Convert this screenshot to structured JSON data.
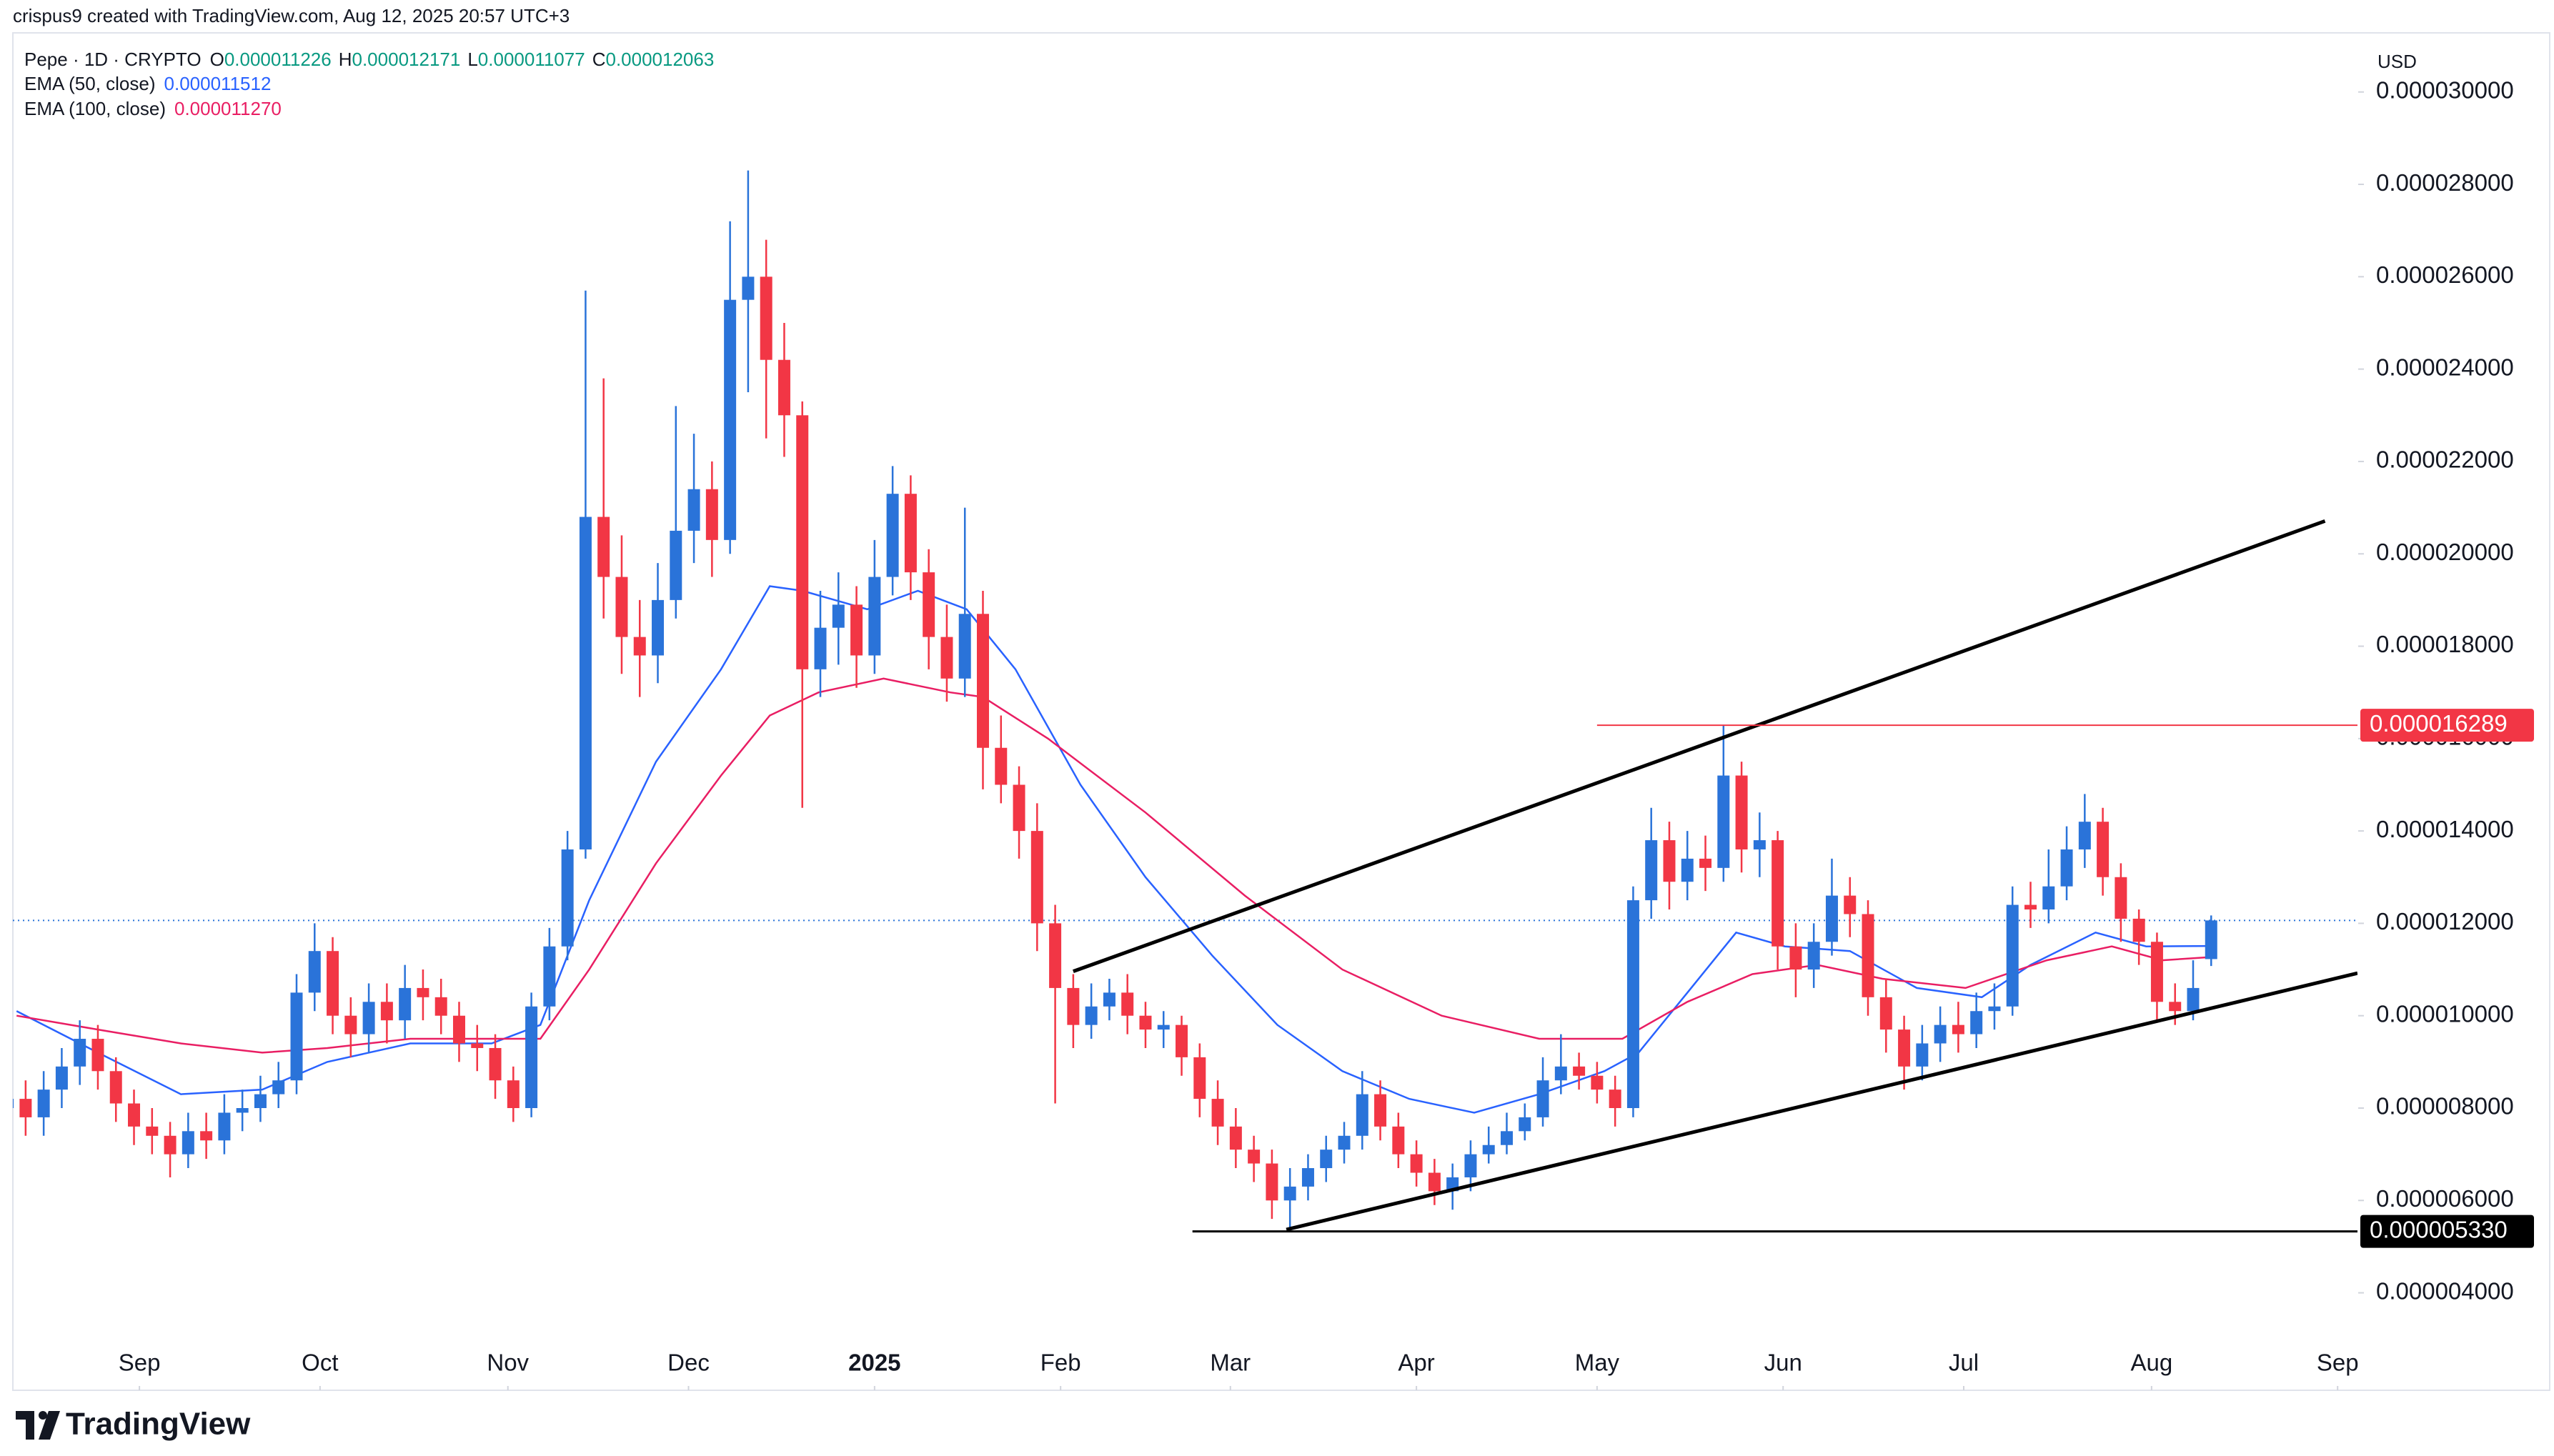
{
  "header": {
    "attribution": "crispus9 created with TradingView.com, Aug 12, 2025 20:57 UTC+3",
    "symbol": "Pepe · 1D · CRYPTO",
    "ohlc": [
      {
        "key": "O",
        "value": 1.1226e-05
      },
      {
        "key": "H",
        "value": 1.2171e-05
      },
      {
        "key": "L",
        "value": 1.1077e-05
      },
      {
        "key": "C",
        "value": 1.2063e-05
      }
    ]
  },
  "footer": {
    "brand": "TradingView"
  },
  "chart_data": {
    "type": "candlestick",
    "currency": "USD",
    "up_color": "#2a73d9",
    "down_color": "#f23645",
    "open": [
      8e-06,
      8.2e-06,
      7.8e-06,
      8.4e-06,
      8.9e-06,
      9.5e-06,
      8.8e-06,
      8.1e-06,
      7.6e-06,
      7.4e-06,
      7e-06,
      7.5e-06,
      7.3e-06,
      7.9e-06,
      8e-06,
      8.3e-06,
      8.6e-06,
      1.05e-05,
      1.14e-05,
      1e-05,
      9.6e-06,
      1.03e-05,
      9.9e-06,
      1.06e-05,
      1.04e-05,
      1e-05,
      9.4e-06,
      9.3e-06,
      8.6e-06,
      8e-06,
      1.02e-05,
      1.15e-05,
      1.36e-05,
      2.08e-05,
      1.95e-05,
      1.82e-05,
      1.78e-05,
      1.9e-05,
      2.05e-05,
      2.14e-05,
      2.03e-05,
      2.55e-05,
      2.6e-05,
      2.42e-05,
      2.3e-05,
      1.75e-05,
      1.84e-05,
      1.89e-05,
      1.78e-05,
      1.95e-05,
      2.13e-05,
      1.96e-05,
      1.82e-05,
      1.73e-05,
      1.87e-05,
      1.58e-05,
      1.5e-05,
      1.4e-05,
      1.2e-05,
      1.06e-05,
      9.8e-06,
      1.02e-05,
      1.05e-05,
      1e-05,
      9.7e-06,
      9.8e-06,
      9.1e-06,
      8.2e-06,
      7.6e-06,
      7.1e-06,
      6.8e-06,
      6e-06,
      6.3e-06,
      6.7e-06,
      7.1e-06,
      7.4e-06,
      8.3e-06,
      7.6e-06,
      7e-06,
      6.6e-06,
      6.2e-06,
      6.5e-06,
      7e-06,
      7.2e-06,
      7.5e-06,
      7.8e-06,
      8.6e-06,
      8.9e-06,
      8.7e-06,
      8.4e-06,
      8e-06,
      1.25e-05,
      1.38e-05,
      1.29e-05,
      1.34e-05,
      1.32e-05,
      1.52e-05,
      1.36e-05,
      1.38e-05,
      1.15e-05,
      1.1e-05,
      1.16e-05,
      1.26e-05,
      1.22e-05,
      1.04e-05,
      9.7e-06,
      8.9e-06,
      9.4e-06,
      9.8e-06,
      9.6e-06,
      1.01e-05,
      1.02e-05,
      1.24e-05,
      1.23e-05,
      1.28e-05,
      1.36e-05,
      1.42e-05,
      1.3e-05,
      1.21e-05,
      1.16e-05,
      1.03e-05,
      1.01e-05,
      1.1226e-05
    ],
    "high": [
      8.6e-06,
      8.6e-06,
      8.8e-06,
      9.3e-06,
      9.9e-06,
      9.8e-06,
      9.1e-06,
      8.4e-06,
      8e-06,
      7.7e-06,
      7.9e-06,
      7.9e-06,
      8.3e-06,
      8.4e-06,
      8.7e-06,
      9e-06,
      1.09e-05,
      1.2e-05,
      1.17e-05,
      1.04e-05,
      1.07e-05,
      1.07e-05,
      1.11e-05,
      1.1e-05,
      1.08e-05,
      1.03e-05,
      9.8e-06,
      9.6e-06,
      8.9e-06,
      1.05e-05,
      1.19e-05,
      1.4e-05,
      2.57e-05,
      2.38e-05,
      2.04e-05,
      1.9e-05,
      1.98e-05,
      2.32e-05,
      2.26e-05,
      2.2e-05,
      2.72e-05,
      2.83e-05,
      2.68e-05,
      2.5e-05,
      2.33e-05,
      1.92e-05,
      1.96e-05,
      1.93e-05,
      2.03e-05,
      2.19e-05,
      2.17e-05,
      2.01e-05,
      1.89e-05,
      2.1e-05,
      1.92e-05,
      1.65e-05,
      1.54e-05,
      1.46e-05,
      1.24e-05,
      1.09e-05,
      1.07e-05,
      1.08e-05,
      1.09e-05,
      1.03e-05,
      1.01e-05,
      1e-05,
      9.4e-06,
      8.6e-06,
      8e-06,
      7.4e-06,
      7.1e-06,
      6.7e-06,
      7e-06,
      7.4e-06,
      7.7e-06,
      8.8e-06,
      8.6e-06,
      7.9e-06,
      7.3e-06,
      6.9e-06,
      6.8e-06,
      7.3e-06,
      7.6e-06,
      7.9e-06,
      8.1e-06,
      9.1e-06,
      9.6e-06,
      9.2e-06,
      9e-06,
      8.7e-06,
      1.28e-05,
      1.45e-05,
      1.42e-05,
      1.4e-05,
      1.39e-05,
      1.63e-05,
      1.55e-05,
      1.44e-05,
      1.4e-05,
      1.2e-05,
      1.2e-05,
      1.34e-05,
      1.3e-05,
      1.25e-05,
      1.08e-05,
      1e-05,
      9.8e-06,
      1.02e-05,
      1.03e-05,
      1.05e-05,
      1.07e-05,
      1.28e-05,
      1.29e-05,
      1.36e-05,
      1.41e-05,
      1.48e-05,
      1.45e-05,
      1.33e-05,
      1.23e-05,
      1.18e-05,
      1.07e-05,
      1.12e-05,
      1.2171e-05
    ],
    "low": [
      7.6e-06,
      7.4e-06,
      7.4e-06,
      8e-06,
      8.5e-06,
      8.4e-06,
      7.7e-06,
      7.2e-06,
      7e-06,
      6.5e-06,
      6.7e-06,
      6.9e-06,
      7e-06,
      7.5e-06,
      7.7e-06,
      8e-06,
      8.3e-06,
      1.01e-05,
      9.6e-06,
      9.1e-06,
      9.2e-06,
      9.4e-06,
      9.5e-06,
      9.9e-06,
      9.6e-06,
      9e-06,
      8.8e-06,
      8.2e-06,
      7.7e-06,
      7.8e-06,
      9.9e-06,
      1.12e-05,
      1.34e-05,
      1.86e-05,
      1.74e-05,
      1.69e-05,
      1.72e-05,
      1.86e-05,
      1.98e-05,
      1.95e-05,
      2e-05,
      2.35e-05,
      2.25e-05,
      2.21e-05,
      1.45e-05,
      1.69e-05,
      1.76e-05,
      1.71e-05,
      1.74e-05,
      1.91e-05,
      1.9e-05,
      1.75e-05,
      1.68e-05,
      1.69e-05,
      1.49e-05,
      1.46e-05,
      1.34e-05,
      1.14e-05,
      8.1e-06,
      9.3e-06,
      9.5e-06,
      9.9e-06,
      9.6e-06,
      9.3e-06,
      9.3e-06,
      8.7e-06,
      7.8e-06,
      7.2e-06,
      6.7e-06,
      6.4e-06,
      5.6e-06,
      5.33e-06,
      6e-06,
      6.4e-06,
      6.8e-06,
      7.1e-06,
      7.3e-06,
      6.7e-06,
      6.3e-06,
      5.9e-06,
      5.8e-06,
      6.2e-06,
      6.8e-06,
      7e-06,
      7.3e-06,
      7.6e-06,
      8.3e-06,
      8.4e-06,
      8.1e-06,
      7.6e-06,
      7.8e-06,
      1.21e-05,
      1.23e-05,
      1.25e-05,
      1.27e-05,
      1.29e-05,
      1.31e-05,
      1.3e-05,
      1.1e-05,
      1.04e-05,
      1.06e-05,
      1.13e-05,
      1.17e-05,
      1e-05,
      9.2e-06,
      8.4e-06,
      8.6e-06,
      9e-06,
      9.2e-06,
      9.3e-06,
      9.7e-06,
      1e-05,
      1.19e-05,
      1.2e-05,
      1.25e-05,
      1.32e-05,
      1.26e-05,
      1.16e-05,
      1.11e-05,
      9.9e-06,
      9.8e-06,
      9.9e-06,
      1.1077e-05
    ],
    "close": [
      8.2e-06,
      7.8e-06,
      8.4e-06,
      8.9e-06,
      9.5e-06,
      8.8e-06,
      8.1e-06,
      7.6e-06,
      7.4e-06,
      7e-06,
      7.5e-06,
      7.3e-06,
      7.9e-06,
      8e-06,
      8.3e-06,
      8.6e-06,
      1.05e-05,
      1.14e-05,
      1e-05,
      9.6e-06,
      1.03e-05,
      9.9e-06,
      1.06e-05,
      1.04e-05,
      1e-05,
      9.4e-06,
      9.3e-06,
      8.6e-06,
      8e-06,
      1.02e-05,
      1.15e-05,
      1.36e-05,
      2.08e-05,
      1.95e-05,
      1.82e-05,
      1.78e-05,
      1.9e-05,
      2.05e-05,
      2.14e-05,
      2.03e-05,
      2.55e-05,
      2.6e-05,
      2.42e-05,
      2.3e-05,
      1.75e-05,
      1.84e-05,
      1.89e-05,
      1.78e-05,
      1.95e-05,
      2.13e-05,
      1.96e-05,
      1.82e-05,
      1.73e-05,
      1.87e-05,
      1.58e-05,
      1.5e-05,
      1.4e-05,
      1.2e-05,
      1.06e-05,
      9.8e-06,
      1.02e-05,
      1.05e-05,
      1e-05,
      9.7e-06,
      9.8e-06,
      9.1e-06,
      8.2e-06,
      7.6e-06,
      7.1e-06,
      6.8e-06,
      6e-06,
      6.3e-06,
      6.7e-06,
      7.1e-06,
      7.4e-06,
      8.3e-06,
      7.6e-06,
      7e-06,
      6.6e-06,
      6.2e-06,
      6.5e-06,
      7e-06,
      7.2e-06,
      7.5e-06,
      7.8e-06,
      8.6e-06,
      8.9e-06,
      8.7e-06,
      8.4e-06,
      8e-06,
      1.25e-05,
      1.38e-05,
      1.29e-05,
      1.34e-05,
      1.32e-05,
      1.52e-05,
      1.36e-05,
      1.38e-05,
      1.15e-05,
      1.1e-05,
      1.16e-05,
      1.26e-05,
      1.22e-05,
      1.04e-05,
      9.7e-06,
      8.9e-06,
      9.4e-06,
      9.8e-06,
      9.6e-06,
      1.01e-05,
      1.02e-05,
      1.24e-05,
      1.23e-05,
      1.28e-05,
      1.36e-05,
      1.42e-05,
      1.3e-05,
      1.21e-05,
      1.16e-05,
      1.03e-05,
      1.01e-05,
      1.06e-05,
      1.2063e-05
    ],
    "ema": [
      {
        "name": "EMA (50, close)",
        "color": "#2962ff",
        "legend_value": 1.1512e-05,
        "x": [
          0.5,
          5.0,
          9.6,
          14.1,
          17.7,
          22.3,
          26.8,
          29.5,
          32.2,
          35.9,
          39.5,
          42.2,
          44.0,
          47.6,
          50.4,
          53.1,
          55.8,
          59.4,
          63.0,
          66.7,
          70.3,
          73.9,
          77.6,
          81.2,
          84.8,
          88.4,
          90.3,
          93.0,
          95.7,
          98.4,
          102.0,
          105.7,
          109.3,
          112.0,
          115.6,
          118.4,
          122.0
        ],
        "values": [
          1.01e-05,
          9.2e-06,
          8.3e-06,
          8.4e-06,
          9e-06,
          9.4e-06,
          9.4e-06,
          9.8e-06,
          1.25e-05,
          1.55e-05,
          1.75e-05,
          1.93e-05,
          1.92e-05,
          1.88e-05,
          1.92e-05,
          1.88e-05,
          1.75e-05,
          1.5e-05,
          1.3e-05,
          1.13e-05,
          9.8e-06,
          8.8e-06,
          8.2e-06,
          7.9e-06,
          8.3e-06,
          8.8e-06,
          9.2e-06,
          1.05e-05,
          1.18e-05,
          1.15e-05,
          1.14e-05,
          1.06e-05,
          1.04e-05,
          1.11e-05,
          1.18e-05,
          1.15e-05,
          1.151e-05
        ]
      },
      {
        "name": "EMA (100, close)",
        "color": "#e91e63",
        "legend_value": {
          "value": 1.127e-05,
          "label": "0.000011270"
        },
        "x": [
          0.5,
          5.0,
          9.6,
          14.1,
          17.7,
          22.3,
          26.8,
          29.5,
          32.2,
          35.9,
          39.5,
          42.2,
          44.9,
          48.5,
          52.2,
          54.0,
          57.6,
          63.0,
          68.5,
          73.9,
          79.4,
          84.8,
          89.4,
          93.0,
          96.6,
          100.2,
          103.8,
          108.4,
          112.9,
          116.5,
          119.3,
          122.0
        ],
        "values": [
          1e-05,
          9.7e-06,
          9.4e-06,
          9.2e-06,
          9.3e-06,
          9.5e-06,
          9.5e-06,
          9.5e-06,
          1.1e-05,
          1.33e-05,
          1.52e-05,
          1.65e-05,
          1.7e-05,
          1.73e-05,
          1.7e-05,
          1.69e-05,
          1.6e-05,
          1.44e-05,
          1.26e-05,
          1.1e-05,
          1e-05,
          9.5e-06,
          9.5e-06,
          1.03e-05,
          1.09e-05,
          1.11e-05,
          1.08e-05,
          1.06e-05,
          1.12e-05,
          1.15e-05,
          1.12e-05,
          1.127e-05
        ]
      }
    ],
    "trend_lines": [
      {
        "x": [
          59.0,
          128.3
        ],
        "values": [
          1.096e-05,
          2.071e-05
        ]
      },
      {
        "x": [
          70.8,
          130.1
        ],
        "values": [
          5.37e-06,
          1.092e-05
        ]
      }
    ],
    "price_lines": [
      {
        "value": 1.6289e-05,
        "label": "0.000016289",
        "color": "#f23645",
        "from": 88.0
      },
      {
        "value": 5.33e-06,
        "label": "0.000005330",
        "color": "#000000",
        "from": 65.6
      }
    ],
    "xlim": [
      -0.3,
      130.1
    ],
    "xticks": [
      {
        "value": 7.3,
        "label": "Sep"
      },
      {
        "value": 17.3,
        "label": "Oct"
      },
      {
        "value": 27.7,
        "label": "Nov"
      },
      {
        "value": 37.7,
        "label": "Dec"
      },
      {
        "value": 48.0,
        "label": "2025",
        "bold": true
      },
      {
        "value": 58.3,
        "label": "Feb"
      },
      {
        "value": 67.7,
        "label": "Mar"
      },
      {
        "value": 78.0,
        "label": "Apr"
      },
      {
        "value": 88.0,
        "label": "May"
      },
      {
        "value": 98.3,
        "label": "Jun"
      },
      {
        "value": 108.3,
        "label": "Jul"
      },
      {
        "value": 118.7,
        "label": "Aug"
      },
      {
        "value": 129.0,
        "label": "Sep"
      }
    ],
    "ylim": [
      1.89e-06,
      3.128e-05
    ],
    "yticks": [
      {
        "value": 4e-06,
        "label": "0.000004000"
      },
      {
        "value": 6e-06,
        "label": "0.000006000"
      },
      {
        "value": 8e-06,
        "label": "0.000008000"
      },
      {
        "value": 1e-05,
        "label": "0.000010000"
      },
      {
        "value": 1.2e-05,
        "label": "0.000012000"
      },
      {
        "value": 1.4e-05,
        "label": "0.000014000"
      },
      {
        "value": 1.6e-05,
        "label": "0.000016000"
      },
      {
        "value": 1.8e-05,
        "label": "0.000018000"
      },
      {
        "value": 2e-05,
        "label": "0.000020000"
      },
      {
        "value": 2.2e-05,
        "label": "0.000022000"
      },
      {
        "value": 2.4e-05,
        "label": "0.000024000"
      },
      {
        "value": 2.6e-05,
        "label": "0.000026000"
      },
      {
        "value": 2.8e-05,
        "label": "0.000028000"
      },
      {
        "value": 3e-05,
        "label": "0.000030000"
      }
    ],
    "grid": false
  }
}
